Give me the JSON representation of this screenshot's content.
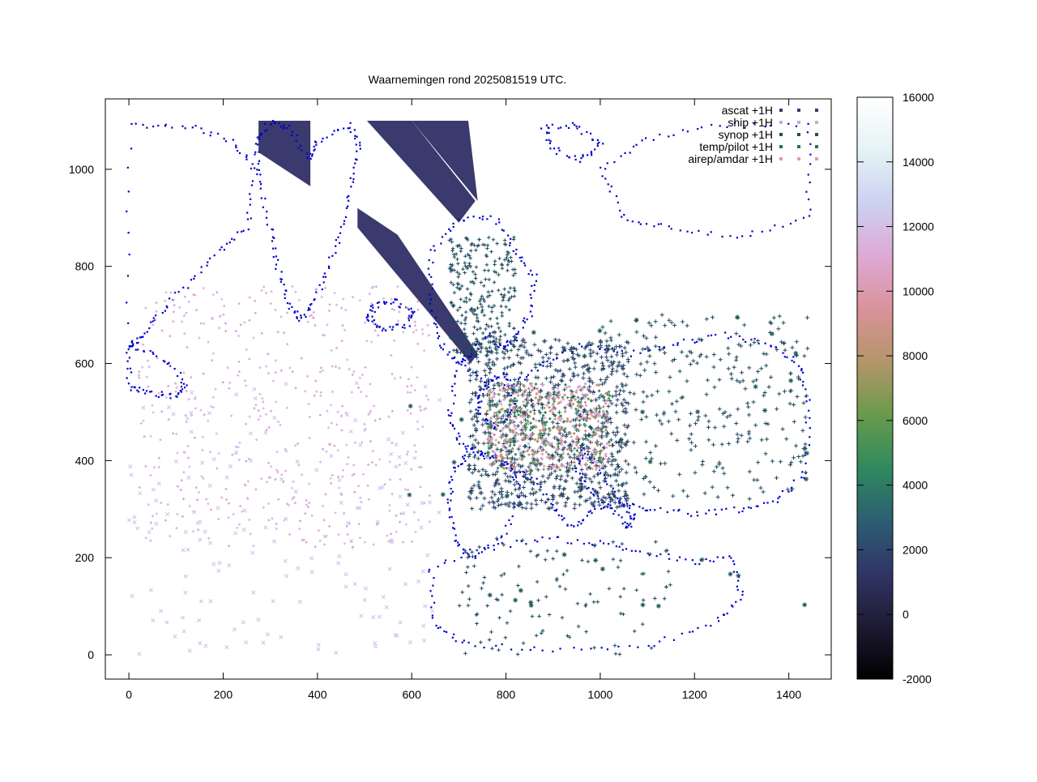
{
  "chart_data": {
    "type": "scatter",
    "title": "Waarnemingen rond 2025081519 UTC.",
    "xlim": [
      -50,
      1490
    ],
    "ylim": [
      -50,
      1145
    ],
    "x_ticks": [
      0,
      200,
      400,
      600,
      800,
      1000,
      1200,
      1400
    ],
    "y_ticks": [
      0,
      200,
      400,
      600,
      800,
      1000
    ],
    "legend_position": "top-right",
    "series": [
      {
        "name": "ascat +1H",
        "marker": "diamond",
        "color": "#3a3a6e"
      },
      {
        "name": "ship +1H",
        "marker": "cross",
        "color": "#c9a8d8"
      },
      {
        "name": "synop +1H",
        "marker": "plus",
        "color": "#1f5060"
      },
      {
        "name": "temp/pilot +1H",
        "marker": "asterisk",
        "color": "#2a6e5a"
      },
      {
        "name": "airep/amdar +1H",
        "marker": "dot",
        "color": "#d9a0a8"
      }
    ],
    "colorbar": {
      "range": [
        -2000,
        16000
      ],
      "ticks": [
        -2000,
        0,
        2000,
        4000,
        6000,
        8000,
        10000,
        12000,
        14000,
        16000
      ],
      "palette": [
        "#000000",
        "#1e1a33",
        "#303565",
        "#2d5e72",
        "#2f8a5e",
        "#6a9a4c",
        "#b5956a",
        "#d9939a",
        "#dfa9d6",
        "#ccd1f1",
        "#e5f3f5",
        "#ffffff"
      ]
    },
    "ascat_swaths": [
      {
        "points": [
          [
            275,
            1100
          ],
          [
            385,
            1100
          ],
          [
            385,
            965
          ],
          [
            275,
            1035
          ]
        ]
      },
      {
        "points": [
          [
            575,
            1100
          ],
          [
            720,
            1100
          ],
          [
            740,
            935
          ],
          [
            600,
            1100
          ]
        ]
      },
      {
        "points": [
          [
            505,
            1100
          ],
          [
            600,
            1100
          ],
          [
            735,
            935
          ],
          [
            700,
            890
          ]
        ]
      },
      {
        "points": [
          [
            485,
            920
          ],
          [
            570,
            865
          ],
          [
            740,
            620
          ],
          [
            725,
            600
          ],
          [
            640,
            700
          ],
          [
            485,
            880
          ]
        ]
      }
    ],
    "coast_color": "#0000cc"
  }
}
